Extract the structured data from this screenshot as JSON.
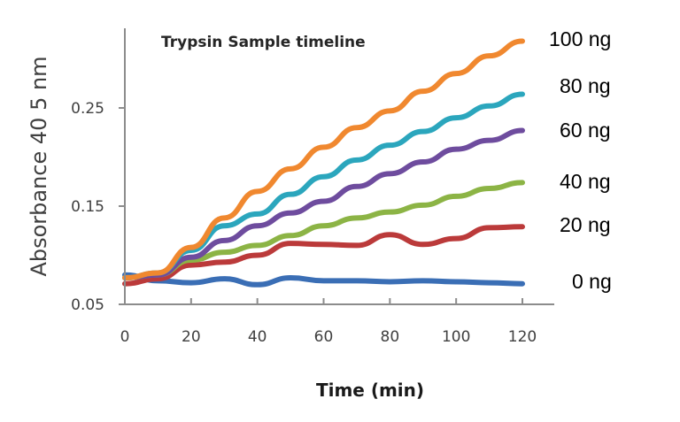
{
  "chart_data": {
    "type": "line",
    "title": "Trypsin Sample timeline",
    "xlabel": "Time (min)",
    "ylabel": "Absorbance 40 5 nm",
    "xlim": [
      0,
      130
    ],
    "ylim": [
      0.05,
      0.33
    ],
    "x_ticks": [
      0,
      20,
      40,
      60,
      80,
      100,
      120
    ],
    "y_ticks": [
      0.05,
      0.15,
      0.25
    ],
    "y_tick_labels": [
      "0.05",
      "0.15",
      "0.25"
    ],
    "grid": false,
    "legend_position": "right (direct labels)",
    "x": [
      0,
      10,
      20,
      30,
      40,
      50,
      60,
      70,
      80,
      90,
      100,
      110,
      120
    ],
    "series": [
      {
        "name": "100 ng",
        "color": "#F0882F",
        "values": [
          0.077,
          0.082,
          0.108,
          0.138,
          0.165,
          0.188,
          0.21,
          0.23,
          0.247,
          0.267,
          0.285,
          0.303,
          0.318
        ]
      },
      {
        "name": "80 ng",
        "color": "#2BA6BD",
        "values": [
          0.077,
          0.082,
          0.105,
          0.13,
          0.142,
          0.162,
          0.18,
          0.197,
          0.212,
          0.226,
          0.24,
          0.252,
          0.264
        ]
      },
      {
        "name": "60 ng",
        "color": "#6E4C9E",
        "values": [
          0.077,
          0.08,
          0.098,
          0.115,
          0.13,
          0.143,
          0.155,
          0.17,
          0.183,
          0.195,
          0.208,
          0.217,
          0.227
        ]
      },
      {
        "name": "40 ng",
        "color": "#8CB445",
        "values": [
          0.077,
          0.08,
          0.095,
          0.103,
          0.11,
          0.12,
          0.13,
          0.138,
          0.144,
          0.151,
          0.16,
          0.168,
          0.174
        ]
      },
      {
        "name": "20 ng",
        "color": "#BB3A3A",
        "values": [
          0.071,
          0.076,
          0.09,
          0.093,
          0.1,
          0.112,
          0.111,
          0.11,
          0.121,
          0.111,
          0.117,
          0.128,
          0.129
        ]
      },
      {
        "name": "0 ng",
        "color": "#3A6EB5",
        "values": [
          0.08,
          0.074,
          0.072,
          0.076,
          0.07,
          0.077,
          0.074,
          0.074,
          0.073,
          0.074,
          0.073,
          0.072,
          0.071
        ]
      }
    ]
  }
}
